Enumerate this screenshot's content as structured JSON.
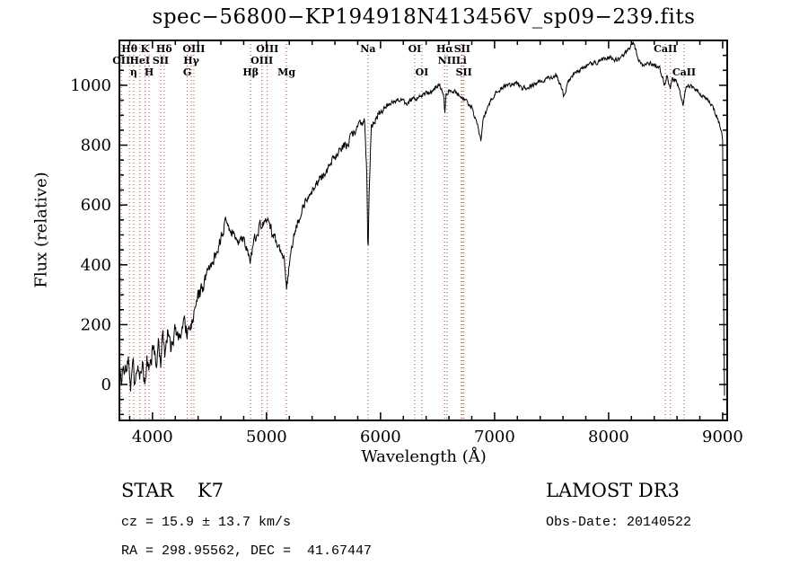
{
  "title": "spec−56800−KP194918N413456V_sp09−239.fits",
  "annotations": {
    "class_label": "STAR    K7",
    "survey": "LAMOST DR3",
    "cz": "cz = 15.9 ± 13.7 km/s",
    "obs_date": "Obs-Date: 20140522",
    "coords": "RA = 298.95562, DEC =  41.67447"
  },
  "chart_data": {
    "type": "line",
    "title": "spec−56800−KP194918N413456V_sp09−239.fits",
    "xlabel": "Wavelength (Å)",
    "ylabel": "Flux (relative)",
    "xlim": [
      3710,
      9040
    ],
    "ylim": [
      -120,
      1150
    ],
    "x_ticks": [
      4000,
      5000,
      6000,
      7000,
      8000,
      9000
    ],
    "y_ticks": [
      0,
      200,
      400,
      600,
      800,
      1000
    ],
    "x_minor_step": 200,
    "y_minor_step": 50,
    "grid": false,
    "legend": "none",
    "line_color": "#000000",
    "marker_line_color": "#b04a3a",
    "noise_seed": 13,
    "noise_profile": [
      [
        4150,
        55
      ],
      [
        4500,
        40
      ],
      [
        5300,
        28
      ],
      [
        6000,
        22
      ],
      [
        6800,
        14
      ],
      [
        9999,
        12
      ]
    ],
    "spectrum_anchors": [
      [
        3710,
        60
      ],
      [
        3730,
        -20
      ],
      [
        3750,
        80
      ],
      [
        3770,
        10
      ],
      [
        3790,
        90
      ],
      [
        3810,
        0
      ],
      [
        3830,
        70
      ],
      [
        3850,
        -30
      ],
      [
        3870,
        60
      ],
      [
        3890,
        20
      ],
      [
        3910,
        100
      ],
      [
        3930,
        10
      ],
      [
        3950,
        90
      ],
      [
        3970,
        30
      ],
      [
        3990,
        80
      ],
      [
        4010,
        130
      ],
      [
        4030,
        60
      ],
      [
        4050,
        140
      ],
      [
        4070,
        70
      ],
      [
        4090,
        150
      ],
      [
        4110,
        100
      ],
      [
        4130,
        170
      ],
      [
        4160,
        120
      ],
      [
        4200,
        190
      ],
      [
        4240,
        150
      ],
      [
        4280,
        210
      ],
      [
        4305,
        170
      ],
      [
        4340,
        200
      ],
      [
        4363,
        250
      ],
      [
        4400,
        290
      ],
      [
        4450,
        330
      ],
      [
        4500,
        380
      ],
      [
        4550,
        430
      ],
      [
        4600,
        490
      ],
      [
        4640,
        540
      ],
      [
        4680,
        520
      ],
      [
        4720,
        500
      ],
      [
        4760,
        470
      ],
      [
        4800,
        480
      ],
      [
        4830,
        450
      ],
      [
        4861,
        410
      ],
      [
        4890,
        480
      ],
      [
        4920,
        510
      ],
      [
        4950,
        530
      ],
      [
        4980,
        540
      ],
      [
        5010,
        550
      ],
      [
        5040,
        520
      ],
      [
        5080,
        480
      ],
      [
        5120,
        450
      ],
      [
        5155,
        420
      ],
      [
        5175,
        320
      ],
      [
        5200,
        400
      ],
      [
        5230,
        480
      ],
      [
        5270,
        540
      ],
      [
        5320,
        590
      ],
      [
        5370,
        630
      ],
      [
        5420,
        660
      ],
      [
        5470,
        690
      ],
      [
        5520,
        710
      ],
      [
        5570,
        740
      ],
      [
        5620,
        770
      ],
      [
        5670,
        790
      ],
      [
        5720,
        810
      ],
      [
        5770,
        840
      ],
      [
        5820,
        870
      ],
      [
        5860,
        880
      ],
      [
        5880,
        700
      ],
      [
        5890,
        430
      ],
      [
        5900,
        650
      ],
      [
        5920,
        870
      ],
      [
        5960,
        890
      ],
      [
        6000,
        910
      ],
      [
        6050,
        930
      ],
      [
        6100,
        940
      ],
      [
        6160,
        950
      ],
      [
        6220,
        940
      ],
      [
        6280,
        950
      ],
      [
        6340,
        960
      ],
      [
        6400,
        970
      ],
      [
        6460,
        980
      ],
      [
        6520,
        1000
      ],
      [
        6555,
        960
      ],
      [
        6563,
        900
      ],
      [
        6575,
        970
      ],
      [
        6620,
        990
      ],
      [
        6680,
        970
      ],
      [
        6740,
        950
      ],
      [
        6800,
        930
      ],
      [
        6860,
        850
      ],
      [
        6880,
        820
      ],
      [
        6900,
        880
      ],
      [
        6940,
        930
      ],
      [
        6980,
        960
      ],
      [
        7020,
        980
      ],
      [
        7060,
        990
      ],
      [
        7120,
        1000
      ],
      [
        7180,
        1010
      ],
      [
        7240,
        990
      ],
      [
        7300,
        995
      ],
      [
        7360,
        1005
      ],
      [
        7420,
        1015
      ],
      [
        7480,
        1025
      ],
      [
        7540,
        1035
      ],
      [
        7590,
        990
      ],
      [
        7610,
        960
      ],
      [
        7640,
        1010
      ],
      [
        7700,
        1040
      ],
      [
        7760,
        1055
      ],
      [
        7820,
        1065
      ],
      [
        7880,
        1075
      ],
      [
        7940,
        1085
      ],
      [
        8000,
        1095
      ],
      [
        8060,
        1085
      ],
      [
        8120,
        1095
      ],
      [
        8180,
        1125
      ],
      [
        8220,
        1140
      ],
      [
        8260,
        1090
      ],
      [
        8300,
        1065
      ],
      [
        8350,
        1075
      ],
      [
        8400,
        1065
      ],
      [
        8450,
        1055
      ],
      [
        8490,
        1000
      ],
      [
        8510,
        1030
      ],
      [
        8540,
        990
      ],
      [
        8560,
        1020
      ],
      [
        8600,
        1010
      ],
      [
        8655,
        940
      ],
      [
        8680,
        1000
      ],
      [
        8720,
        995
      ],
      [
        8760,
        985
      ],
      [
        8800,
        975
      ],
      [
        8840,
        960
      ],
      [
        8880,
        945
      ],
      [
        8920,
        920
      ],
      [
        8950,
        890
      ],
      [
        8980,
        860
      ],
      [
        9000,
        820
      ],
      [
        9006,
        500
      ],
      [
        9012,
        150
      ],
      [
        9016,
        -30
      ]
    ],
    "spectral_lines": [
      3727,
      3798,
      3835,
      3889,
      3934,
      3970,
      4072,
      4102,
      4305,
      4340,
      4363,
      4861,
      4959,
      5007,
      5175,
      5890,
      6300,
      6363,
      6563,
      6583,
      6708,
      6716,
      6731,
      8498,
      8542,
      8662
    ],
    "line_labels": [
      {
        "text": "Hθ",
        "row": 1,
        "wl": 3798
      },
      {
        "text": "K",
        "row": 1,
        "wl": 3934
      },
      {
        "text": "Hδ",
        "row": 1,
        "wl": 4102
      },
      {
        "text": "OII",
        "row": 2,
        "wl": 3727
      },
      {
        "text": "HeI",
        "row": 2,
        "wl": 3889
      },
      {
        "text": "SII",
        "row": 2,
        "wl": 4072
      },
      {
        "text": "η",
        "row": 3,
        "wl": 3835
      },
      {
        "text": "H",
        "row": 3,
        "wl": 3970
      },
      {
        "text": "OIII",
        "row": 1,
        "wl": 4363
      },
      {
        "text": "Hγ",
        "row": 2,
        "wl": 4340
      },
      {
        "text": "G",
        "row": 3,
        "wl": 4305
      },
      {
        "text": "OIII",
        "row": 1,
        "wl": 5007
      },
      {
        "text": "OIII",
        "row": 2,
        "wl": 4959
      },
      {
        "text": "Hβ",
        "row": 3,
        "wl": 4861
      },
      {
        "text": "Mg",
        "row": 3,
        "wl": 5175
      },
      {
        "text": "Na",
        "row": 1,
        "wl": 5890
      },
      {
        "text": "OI",
        "row": 1,
        "wl": 6300
      },
      {
        "text": "OI",
        "row": 3,
        "wl": 6363
      },
      {
        "text": "Hα",
        "row": 1,
        "wl": 6563
      },
      {
        "text": "SII",
        "row": 1,
        "wl": 6716
      },
      {
        "text": "NII",
        "row": 2,
        "wl": 6583
      },
      {
        "text": "Li",
        "row": 2,
        "wl": 6708
      },
      {
        "text": "SII",
        "row": 3,
        "wl": 6731
      },
      {
        "text": "CaII",
        "row": 1,
        "wl": 8498
      },
      {
        "text": "CaII",
        "row": 3,
        "wl": 8662
      }
    ]
  }
}
